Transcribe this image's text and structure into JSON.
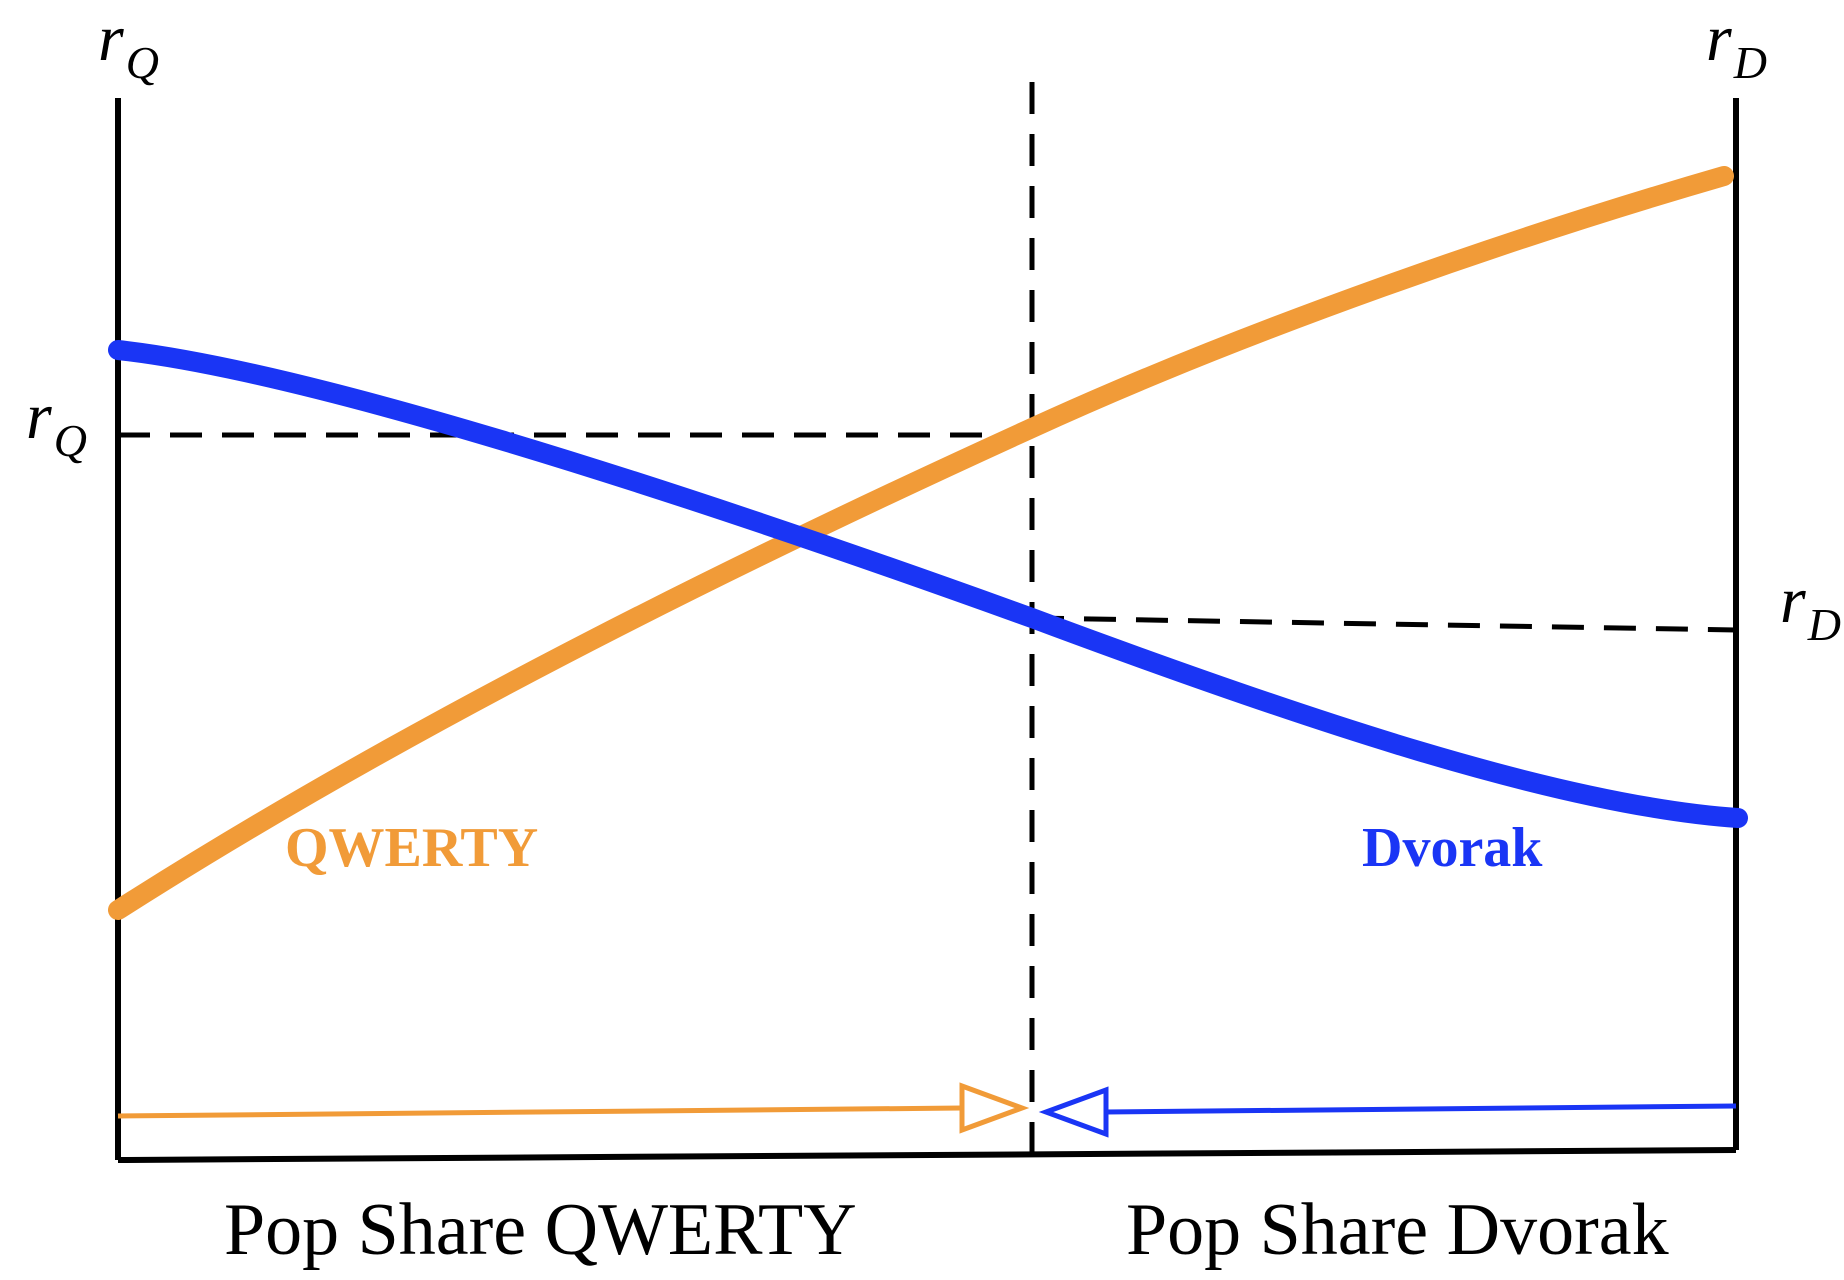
{
  "colors": {
    "qwerty": "#F19B38",
    "dvorak": "#1A35F5",
    "axis": "#000000"
  },
  "axes": {
    "left_axis_top_label": {
      "base": "r",
      "sub": "Q"
    },
    "right_axis_top_label": {
      "base": "r",
      "sub": "D"
    },
    "left_level_label": {
      "base": "r",
      "sub": "Q"
    },
    "right_level_label": {
      "base": "r",
      "sub": "D"
    }
  },
  "curves": {
    "qwerty_label": "QWERTY",
    "dvorak_label": "Dvorak"
  },
  "bottom_labels": {
    "left": "Pop Share QWERTY",
    "right": "Pop Share Dvorak"
  }
}
